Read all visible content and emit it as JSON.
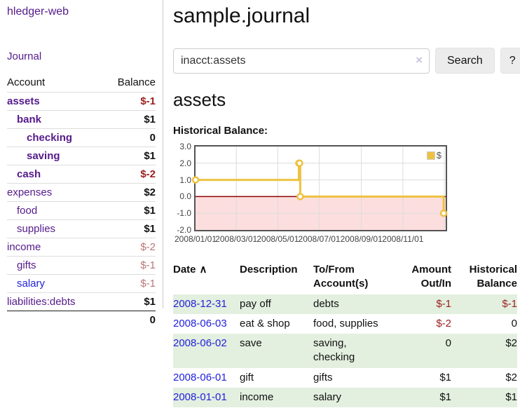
{
  "sidebar": {
    "brand": "hledger-web",
    "nav": {
      "journal": "Journal"
    },
    "accounts_table": {
      "headers": {
        "account": "Account",
        "balance": "Balance"
      },
      "rows": [
        {
          "name": "assets",
          "indent": 0,
          "bold": true,
          "balance": "$-1",
          "balance_style": "neg-strong",
          "link_style": "visited"
        },
        {
          "name": "bank",
          "indent": 1,
          "bold": true,
          "balance": "$1",
          "balance_style": "pos",
          "link_style": "visited"
        },
        {
          "name": "checking",
          "indent": 2,
          "bold": true,
          "balance": "0",
          "balance_style": "pos",
          "link_style": "visited"
        },
        {
          "name": "saving",
          "indent": 2,
          "bold": true,
          "balance": "$1",
          "balance_style": "pos",
          "link_style": "visited"
        },
        {
          "name": "cash",
          "indent": 1,
          "bold": true,
          "balance": "$-2",
          "balance_style": "neg-strong",
          "link_style": "visited"
        },
        {
          "name": "expenses",
          "indent": 0,
          "bold": false,
          "balance": "$2",
          "balance_style": "pos",
          "link_style": "visited"
        },
        {
          "name": "food",
          "indent": 1,
          "bold": false,
          "balance": "$1",
          "balance_style": "pos",
          "link_style": "visited"
        },
        {
          "name": "supplies",
          "indent": 1,
          "bold": false,
          "balance": "$1",
          "balance_style": "pos",
          "link_style": "visited"
        },
        {
          "name": "income",
          "indent": 0,
          "bold": false,
          "balance": "$-2",
          "balance_style": "neg-muted",
          "link_style": "visited"
        },
        {
          "name": "gifts",
          "indent": 1,
          "bold": false,
          "balance": "$-1",
          "balance_style": "neg-muted",
          "link_style": "visited"
        },
        {
          "name": "salary",
          "indent": 1,
          "bold": false,
          "balance": "$-1",
          "balance_style": "neg-muted",
          "link_style": "unvisited"
        },
        {
          "name": "liabilities:debts",
          "indent": 0,
          "bold": false,
          "balance": "$1",
          "balance_style": "pos",
          "link_style": "visited"
        }
      ],
      "total": "0"
    }
  },
  "header": {
    "title": "sample.journal"
  },
  "search": {
    "value": "inacct:assets",
    "clear_icon": "×",
    "button": "Search",
    "help_button": "?"
  },
  "account_page": {
    "title": "assets",
    "chart_label": "Historical Balance:"
  },
  "chart_data": {
    "type": "line",
    "title": "Historical Balance",
    "series": [
      {
        "name": "$",
        "color": "#edc240",
        "steps": true,
        "points": [
          {
            "x": "2008-01-01",
            "y": 1
          },
          {
            "x": "2008-06-01",
            "y": 2
          },
          {
            "x": "2008-06-02",
            "y": 2
          },
          {
            "x": "2008-06-03",
            "y": 0
          },
          {
            "x": "2008-12-31",
            "y": -1
          }
        ]
      }
    ],
    "ylim": [
      -2,
      3
    ],
    "yticks": [
      {
        "v": 3,
        "label": "3.0"
      },
      {
        "v": 2,
        "label": "2.0"
      },
      {
        "v": 1,
        "label": "1.0"
      },
      {
        "v": 0,
        "label": "0.0"
      },
      {
        "v": -1,
        "label": "-1.0"
      },
      {
        "v": -2,
        "label": "-2.0"
      }
    ],
    "xticks": [
      {
        "date": "2008-01-01",
        "label": "2008/01/01"
      },
      {
        "date": "2008-03-01",
        "label": "2008/03/01"
      },
      {
        "date": "2008-05-01",
        "label": "2008/05/01"
      },
      {
        "date": "2008-07-01",
        "label": "2008/07/01"
      },
      {
        "date": "2008-09-01",
        "label": "2008/09/01"
      },
      {
        "date": "2008-11-01",
        "label": "2008/11/01"
      }
    ],
    "grid_dates": [
      "2008-03-01",
      "2008-05-01",
      "2008-07-01",
      "2008-09-01",
      "2008-11-01",
      "2009-01-01"
    ],
    "x_domain": [
      "2008-01-01",
      "2009-01-03"
    ],
    "grid": true,
    "legend_position": "top-right",
    "legend_label": "$",
    "negative_region_color": "#fcdede",
    "zero_line_color": "#8b0000",
    "gridline_color": "#dcdcdc"
  },
  "register_table": {
    "headers": {
      "date": "Date",
      "description": "Description",
      "accounts": "To/From Account(s)",
      "amount": "Amount Out/In",
      "balance": "Historical Balance"
    },
    "sort_icon": "∧",
    "rows": [
      {
        "date": "2008-12-31",
        "description": "pay off",
        "accounts": "debts",
        "amount": "$-1",
        "balance": "$-1",
        "amount_neg": true,
        "balance_neg": true,
        "shade": true
      },
      {
        "date": "2008-06-03",
        "description": "eat & shop",
        "accounts": "food, supplies",
        "amount": "$-2",
        "balance": "0",
        "amount_neg": true,
        "balance_neg": false,
        "shade": false
      },
      {
        "date": "2008-06-02",
        "description": "save",
        "accounts": "saving, checking",
        "amount": "0",
        "balance": "$2",
        "amount_neg": false,
        "balance_neg": false,
        "shade": true
      },
      {
        "date": "2008-06-01",
        "description": "gift",
        "accounts": "gifts",
        "amount": "$1",
        "balance": "$2",
        "amount_neg": false,
        "balance_neg": false,
        "shade": false
      },
      {
        "date": "2008-01-01",
        "description": "income",
        "accounts": "salary",
        "amount": "$1",
        "balance": "$1",
        "amount_neg": false,
        "balance_neg": false,
        "shade": true
      }
    ]
  },
  "colors": {
    "link_visited": "#551a8b",
    "link_unvisited": "#2222dd",
    "negative_strong": "#9c1d1d",
    "negative_muted": "#b97676",
    "row_shade_green": "#e3efdf",
    "series_gold": "#edc240"
  }
}
